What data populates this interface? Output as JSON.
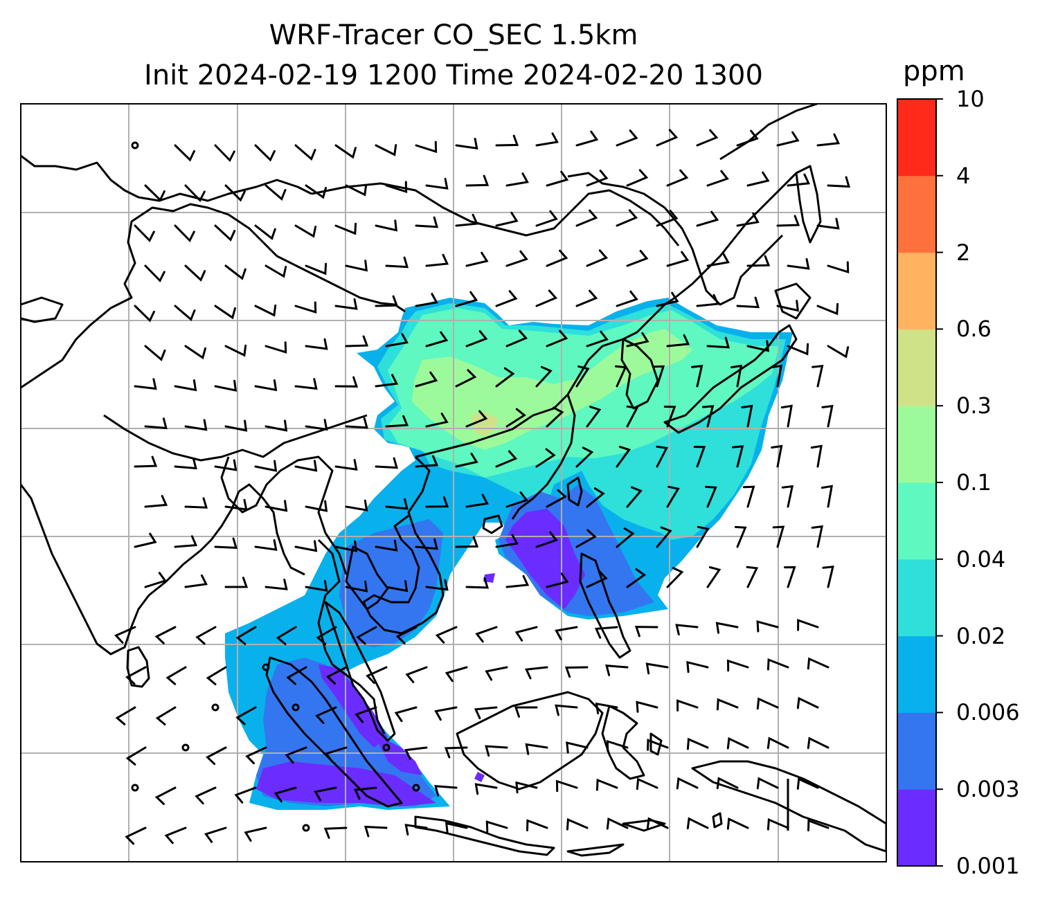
{
  "title_line1": "WRF-Tracer CO_SEC 1.5km",
  "title_line2": "Init 2024-02-19 1200 Time 2024-02-20 1300",
  "colorbar": {
    "unit": "ppm",
    "ticks": [
      "0.001",
      "0.003",
      "0.006",
      "0.02",
      "0.04",
      "0.1",
      "0.3",
      "0.6",
      "2",
      "4",
      "10"
    ],
    "colors": [
      "#6a2cff",
      "#3476f0",
      "#08b1ec",
      "#2ee0d9",
      "#5ff8c0",
      "#9dfa9b",
      "#d0e287",
      "#ffb25f",
      "#ff713c",
      "#ff2a19"
    ]
  },
  "map": {
    "gridline_color": "#b0b0b0",
    "coastline_color": "#000000",
    "wind_barb_color": "#000000"
  }
}
